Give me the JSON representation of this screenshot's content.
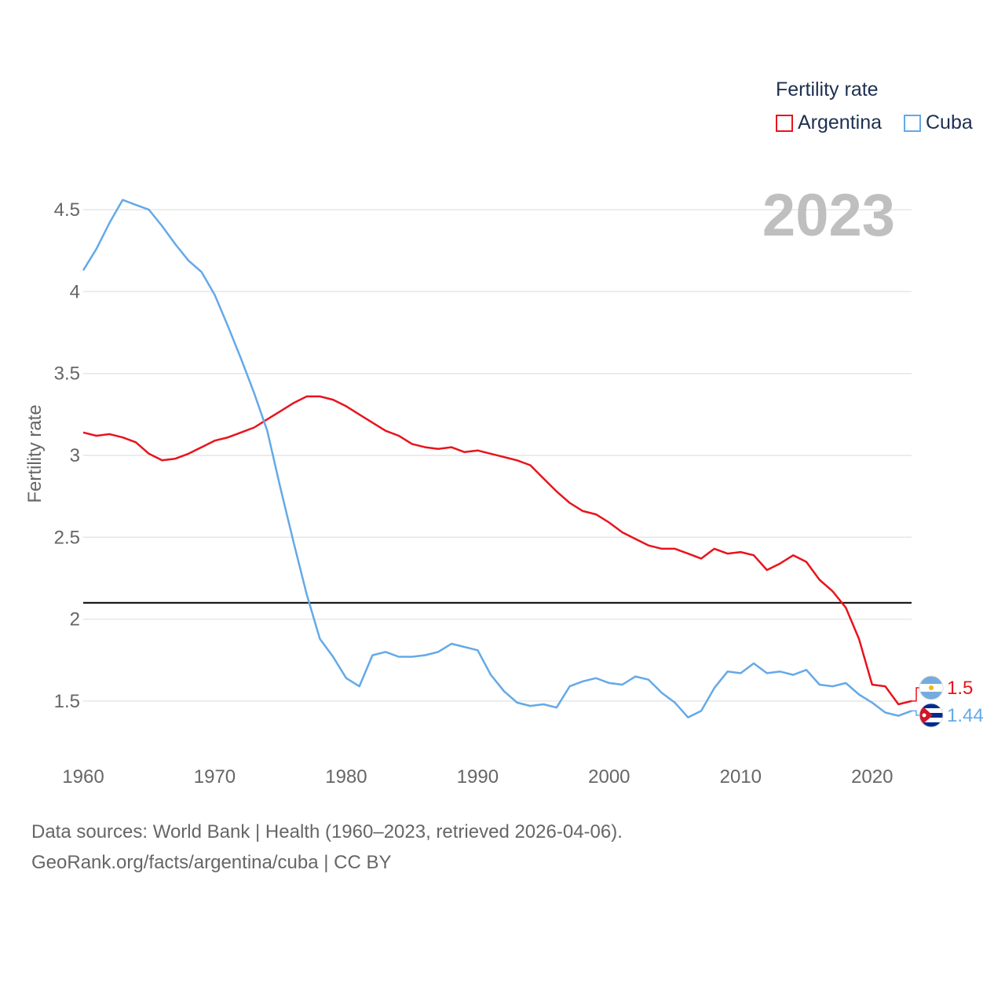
{
  "chart_data": {
    "type": "line",
    "title": "",
    "year_label": "2023",
    "ylabel": "Fertility rate",
    "xlabel": "",
    "xlim": [
      1960,
      2023
    ],
    "ylim": [
      1.25,
      4.75
    ],
    "x_ticks": [
      1960,
      1970,
      1980,
      1990,
      2000,
      2010,
      2020
    ],
    "y_ticks": [
      1.5,
      2,
      2.5,
      3,
      3.5,
      4,
      4.5
    ],
    "y_tick_labels": [
      "1.5",
      "2",
      "2.5",
      "3",
      "3.5",
      "4",
      "4.5"
    ],
    "reference_line": {
      "value": 2.1,
      "color": "#000000"
    },
    "legend": {
      "title": "Fertility rate",
      "placement": "top-right"
    },
    "x": [
      1960,
      1961,
      1962,
      1963,
      1964,
      1965,
      1966,
      1967,
      1968,
      1969,
      1970,
      1971,
      1972,
      1973,
      1974,
      1975,
      1976,
      1977,
      1978,
      1979,
      1980,
      1981,
      1982,
      1983,
      1984,
      1985,
      1986,
      1987,
      1988,
      1989,
      1990,
      1991,
      1992,
      1993,
      1994,
      1995,
      1996,
      1997,
      1998,
      1999,
      2000,
      2001,
      2002,
      2003,
      2004,
      2005,
      2006,
      2007,
      2008,
      2009,
      2010,
      2011,
      2012,
      2013,
      2014,
      2015,
      2016,
      2017,
      2018,
      2019,
      2020,
      2021,
      2022,
      2023
    ],
    "series": [
      {
        "name": "Argentina",
        "color": "#e8141c",
        "end_label": "1.5",
        "values": [
          3.14,
          3.12,
          3.13,
          3.11,
          3.08,
          3.01,
          2.97,
          2.98,
          3.01,
          3.05,
          3.09,
          3.11,
          3.14,
          3.17,
          3.22,
          3.27,
          3.32,
          3.36,
          3.36,
          3.34,
          3.3,
          3.25,
          3.2,
          3.15,
          3.12,
          3.07,
          3.05,
          3.04,
          3.05,
          3.02,
          3.03,
          3.01,
          2.99,
          2.97,
          2.94,
          2.86,
          2.78,
          2.71,
          2.66,
          2.64,
          2.59,
          2.53,
          2.49,
          2.45,
          2.43,
          2.43,
          2.4,
          2.37,
          2.43,
          2.4,
          2.41,
          2.39,
          2.3,
          2.34,
          2.39,
          2.35,
          2.24,
          2.17,
          2.07,
          1.88,
          1.6,
          1.59,
          1.48,
          1.5
        ]
      },
      {
        "name": "Cuba",
        "color": "#64a9e8",
        "end_label": "1.44",
        "values": [
          4.13,
          4.26,
          4.42,
          4.56,
          4.53,
          4.5,
          4.4,
          4.29,
          4.19,
          4.12,
          3.98,
          3.79,
          3.59,
          3.38,
          3.15,
          2.8,
          2.47,
          2.15,
          1.88,
          1.77,
          1.64,
          1.59,
          1.78,
          1.8,
          1.77,
          1.77,
          1.78,
          1.8,
          1.85,
          1.83,
          1.81,
          1.66,
          1.56,
          1.49,
          1.47,
          1.48,
          1.46,
          1.59,
          1.62,
          1.64,
          1.61,
          1.6,
          1.65,
          1.63,
          1.55,
          1.49,
          1.4,
          1.44,
          1.58,
          1.68,
          1.67,
          1.73,
          1.67,
          1.68,
          1.66,
          1.69,
          1.6,
          1.59,
          1.61,
          1.54,
          1.49,
          1.43,
          1.41,
          1.44
        ]
      }
    ]
  },
  "footer": {
    "line1": "Data sources: World Bank | Health (1960–2023, retrieved 2026-04-06).",
    "line2": "GeoRank.org/facts/argentina/cuba | CC BY"
  }
}
